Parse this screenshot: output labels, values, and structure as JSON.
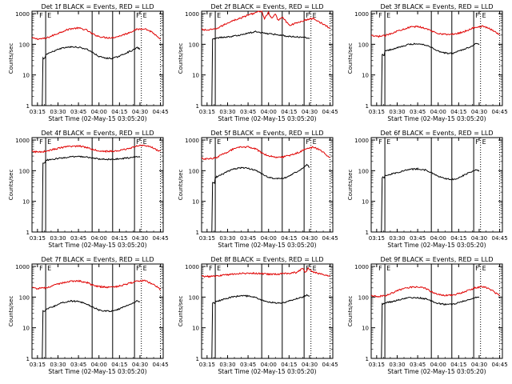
{
  "colors": {
    "events": "#000000",
    "lld": "#e00000",
    "background": "#ffffff"
  },
  "shared": {
    "x_ticks": [
      "03:15",
      "03:30",
      "03:45",
      "04:00",
      "04:15",
      "04:30",
      "04:45"
    ],
    "x_tick_values": [
      0,
      15,
      30,
      45,
      60,
      75,
      90
    ],
    "xlim": [
      -4,
      92
    ],
    "xlabel": "Start Time (02-May-15 03:05:20)",
    "ylabel": "Counts/sec",
    "y_ticks": [
      "1",
      "10",
      "100",
      "1000"
    ],
    "y_tick_values": [
      1,
      10,
      100,
      1000
    ],
    "ylim": [
      1,
      1200
    ],
    "y_scale": "log",
    "markers": {
      "solid": [
        6,
        40,
        55,
        71
      ],
      "dotted": [
        76,
        90
      ],
      "flags": [
        "F",
        "E",
        "F",
        "E"
      ]
    }
  },
  "chart_data": [
    {
      "title": "Det 1f BLACK = Events, RED = LLD",
      "type": "line",
      "events": {
        "start": 3,
        "jump_to": 35,
        "end": 75,
        "x": [
          6,
          12,
          18,
          24,
          30,
          36,
          40,
          45,
          50,
          55,
          58,
          62,
          66,
          70,
          73,
          75
        ],
        "y": [
          45,
          60,
          75,
          82,
          80,
          70,
          55,
          40,
          35,
          35,
          38,
          45,
          55,
          65,
          78,
          70
        ]
      },
      "lld": {
        "start": -4,
        "end": 90,
        "x": [
          -4,
          0,
          6,
          12,
          18,
          24,
          30,
          36,
          40,
          45,
          50,
          55,
          60,
          66,
          72,
          78,
          84,
          90
        ],
        "y": [
          160,
          150,
          155,
          200,
          260,
          320,
          340,
          290,
          220,
          180,
          165,
          165,
          185,
          230,
          300,
          330,
          250,
          140
        ]
      }
    },
    {
      "title": "Det 2f BLACK = Events, RED = LLD",
      "type": "line",
      "events": {
        "start": 3,
        "jump_to": 150,
        "end": 75,
        "x": [
          6,
          12,
          18,
          24,
          30,
          36,
          40,
          45,
          50,
          55,
          58,
          62,
          66,
          70,
          73,
          75
        ],
        "y": [
          160,
          170,
          180,
          200,
          230,
          260,
          240,
          220,
          210,
          200,
          180,
          180,
          175,
          170,
          165,
          160
        ]
      },
      "lld": {
        "start": -4,
        "end": 90,
        "x": [
          -4,
          0,
          6,
          12,
          18,
          24,
          30,
          36,
          40,
          42,
          45,
          47,
          50,
          52,
          55,
          60,
          66,
          72,
          78,
          84,
          90
        ],
        "y": [
          300,
          290,
          310,
          420,
          580,
          700,
          900,
          1100,
          1200,
          700,
          1100,
          700,
          950,
          600,
          800,
          420,
          500,
          620,
          700,
          480,
          330
        ]
      }
    },
    {
      "title": "Det 3f BLACK = Events, RED = LLD",
      "type": "line",
      "events": {
        "start": 3,
        "jump_to": 45,
        "end": 75,
        "x": [
          6,
          12,
          18,
          24,
          30,
          36,
          40,
          45,
          50,
          55,
          58,
          62,
          66,
          70,
          73,
          75
        ],
        "y": [
          60,
          70,
          85,
          100,
          105,
          95,
          80,
          60,
          52,
          50,
          55,
          65,
          75,
          90,
          110,
          100
        ]
      },
      "lld": {
        "start": -4,
        "end": 90,
        "x": [
          -4,
          0,
          6,
          12,
          18,
          24,
          30,
          36,
          40,
          45,
          50,
          55,
          60,
          66,
          72,
          78,
          84,
          90
        ],
        "y": [
          190,
          180,
          190,
          240,
          300,
          360,
          380,
          330,
          270,
          230,
          210,
          210,
          230,
          280,
          360,
          390,
          300,
          210
        ]
      }
    },
    {
      "title": "Det 4f BLACK = Events, RED = LLD",
      "type": "line",
      "events": {
        "start": 3,
        "jump_to": 180,
        "end": 75,
        "x": [
          6,
          12,
          18,
          24,
          30,
          36,
          40,
          45,
          50,
          55,
          58,
          62,
          66,
          70,
          73,
          75
        ],
        "y": [
          220,
          240,
          260,
          280,
          290,
          280,
          260,
          240,
          235,
          235,
          240,
          250,
          260,
          270,
          285,
          280
        ]
      },
      "lld": {
        "start": -4,
        "end": 90,
        "x": [
          -4,
          0,
          6,
          12,
          18,
          24,
          30,
          36,
          40,
          45,
          50,
          55,
          60,
          66,
          72,
          78,
          84,
          90
        ],
        "y": [
          420,
          410,
          430,
          500,
          570,
          620,
          640,
          580,
          500,
          450,
          430,
          430,
          450,
          520,
          620,
          700,
          560,
          420
        ]
      }
    },
    {
      "title": "Det 5f BLACK = Events, RED = LLD",
      "type": "line",
      "events": {
        "start": 3,
        "jump_to": 40,
        "end": 75,
        "x": [
          6,
          12,
          18,
          24,
          30,
          36,
          40,
          45,
          50,
          55,
          58,
          62,
          66,
          70,
          73,
          75
        ],
        "y": [
          60,
          80,
          110,
          125,
          120,
          100,
          80,
          60,
          55,
          55,
          60,
          75,
          95,
          120,
          160,
          130
        ]
      },
      "lld": {
        "start": -4,
        "end": 90,
        "x": [
          -4,
          0,
          6,
          12,
          18,
          24,
          30,
          36,
          40,
          45,
          50,
          55,
          60,
          66,
          72,
          78,
          84,
          90
        ],
        "y": [
          250,
          240,
          260,
          350,
          480,
          580,
          600,
          500,
          380,
          310,
          280,
          280,
          310,
          380,
          500,
          600,
          430,
          260
        ]
      }
    },
    {
      "title": "Det 6f BLACK = Events, RED = LLD",
      "type": "line",
      "events": {
        "start": 3,
        "jump_to": 60,
        "end": 75,
        "x": [
          6,
          12,
          18,
          24,
          30,
          36,
          40,
          45,
          50,
          55,
          58,
          62,
          66,
          70,
          73,
          75
        ],
        "y": [
          70,
          80,
          95,
          110,
          115,
          105,
          85,
          65,
          55,
          52,
          55,
          65,
          80,
          95,
          110,
          100
        ]
      },
      "lld": null
    },
    {
      "title": "Det 7f BLACK = Events, RED = LLD",
      "type": "line",
      "events": {
        "start": 3,
        "jump_to": 35,
        "end": 75,
        "x": [
          6,
          12,
          18,
          24,
          30,
          36,
          40,
          45,
          50,
          55,
          58,
          62,
          66,
          70,
          73,
          75
        ],
        "y": [
          40,
          50,
          65,
          75,
          72,
          60,
          48,
          38,
          35,
          35,
          38,
          45,
          55,
          65,
          75,
          70
        ]
      },
      "lld": {
        "start": -4,
        "end": 90,
        "x": [
          -4,
          0,
          6,
          12,
          18,
          24,
          30,
          36,
          40,
          45,
          50,
          55,
          60,
          66,
          72,
          78,
          84,
          90
        ],
        "y": [
          200,
          190,
          200,
          240,
          290,
          330,
          340,
          300,
          250,
          220,
          210,
          210,
          230,
          270,
          320,
          350,
          270,
          180
        ]
      }
    },
    {
      "title": "Det 8f BLACK = Events, RED = LLD",
      "type": "line",
      "events": {
        "start": 3,
        "jump_to": 65,
        "end": 75,
        "x": [
          6,
          12,
          18,
          24,
          30,
          36,
          40,
          45,
          50,
          55,
          58,
          62,
          66,
          70,
          73,
          75
        ],
        "y": [
          70,
          85,
          100,
          110,
          108,
          95,
          80,
          68,
          65,
          65,
          70,
          80,
          90,
          100,
          115,
          105
        ]
      },
      "lld": {
        "start": -4,
        "end": 90,
        "x": [
          -4,
          0,
          6,
          12,
          18,
          24,
          30,
          36,
          40,
          45,
          50,
          55,
          60,
          66,
          70,
          72,
          74,
          78,
          84,
          90
        ],
        "y": [
          480,
          470,
          480,
          520,
          560,
          590,
          600,
          600,
          580,
          560,
          560,
          570,
          600,
          640,
          900,
          620,
          880,
          640,
          560,
          480
        ]
      }
    },
    {
      "title": "Det 9f BLACK = Events, RED = LLD",
      "type": "line",
      "events": {
        "start": 3,
        "jump_to": 60,
        "end": 75,
        "x": [
          6,
          12,
          18,
          24,
          30,
          36,
          40,
          45,
          50,
          55,
          58,
          62,
          66,
          70,
          73,
          75
        ],
        "y": [
          65,
          72,
          85,
          95,
          95,
          88,
          75,
          62,
          58,
          58,
          62,
          70,
          80,
          88,
          100,
          95
        ]
      },
      "lld": {
        "start": -4,
        "end": 90,
        "x": [
          -4,
          0,
          6,
          12,
          18,
          24,
          30,
          36,
          40,
          45,
          50,
          55,
          60,
          66,
          72,
          78,
          84,
          90
        ],
        "y": [
          110,
          105,
          110,
          140,
          180,
          210,
          220,
          190,
          150,
          125,
          115,
          115,
          130,
          160,
          200,
          220,
          170,
          110
        ]
      }
    }
  ]
}
